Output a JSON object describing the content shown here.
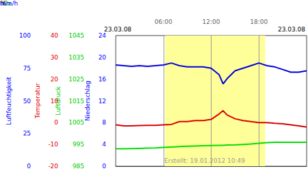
{
  "chart_data": {
    "type": "line",
    "dates": [
      "23.03.08",
      "23.03.08"
    ],
    "footer": "Erstellt: 19.01.2012 10:49",
    "x": [
      0,
      1,
      2,
      3,
      4,
      5,
      6,
      7,
      8,
      9,
      10,
      11,
      12,
      13,
      13.5,
      14,
      15,
      16,
      17,
      18,
      19,
      20,
      21,
      22,
      23,
      24
    ],
    "xlim": [
      0,
      24
    ],
    "xticks": [
      {
        "value": 6,
        "label": "06:00"
      },
      {
        "value": 12,
        "label": "12:00"
      },
      {
        "value": 18,
        "label": "18:00"
      }
    ],
    "grid": true,
    "daylight": {
      "from": 6.2,
      "to": 18.8,
      "color": "#ffff99"
    },
    "axes": [
      {
        "label": "Luftfeuchtigkeit",
        "unit": "%",
        "color": "#0000ff",
        "ylim": [
          0,
          100
        ],
        "yticks": [
          0,
          25,
          50,
          75,
          100
        ]
      },
      {
        "label": "Temperatur",
        "unit": "°C",
        "color": "#dd0000",
        "ylim": [
          -20,
          40
        ],
        "yticks": [
          -20,
          -10,
          0,
          10,
          20,
          30,
          40
        ]
      },
      {
        "label": "Luftdruck",
        "unit": "hPa",
        "color": "#00cc00",
        "ylim": [
          985,
          1045
        ],
        "yticks": [
          985,
          995,
          1005,
          1015,
          1025,
          1035,
          1045
        ]
      },
      {
        "label": "Niederschlag",
        "unit": "mm/h",
        "color": "#0000ff",
        "ylim": [
          0,
          24
        ],
        "yticks": [
          0,
          4,
          8,
          12,
          16,
          20,
          24
        ]
      }
    ],
    "series": [
      {
        "axis": 0,
        "color": "#0000dd",
        "values": [
          77.5,
          77,
          76.5,
          77,
          76.5,
          77,
          77.5,
          79,
          77,
          76,
          76,
          76,
          75,
          70,
          63,
          67,
          73,
          75,
          77,
          79,
          77,
          76,
          74,
          72,
          72,
          73
        ]
      },
      {
        "axis": 1,
        "color": "#dd0000",
        "values": [
          -1,
          -1.5,
          -1.5,
          -1.3,
          -1.2,
          -1.2,
          -1,
          -0.8,
          0.5,
          0.5,
          1,
          1,
          1.5,
          4,
          5.5,
          3.5,
          1.8,
          1,
          0.5,
          0,
          0,
          -0.3,
          -0.5,
          -1,
          -1.5,
          -2
        ]
      },
      {
        "axis": 2,
        "color": "#00dd00",
        "values": [
          993,
          993,
          993.1,
          993.2,
          993.3,
          993.4,
          993.6,
          993.8,
          994,
          994.2,
          994.3,
          994.4,
          994.5,
          994.6,
          994.6,
          994.7,
          994.8,
          995,
          995.2,
          995.5,
          995.8,
          996,
          996,
          996,
          996,
          996
        ]
      }
    ]
  }
}
